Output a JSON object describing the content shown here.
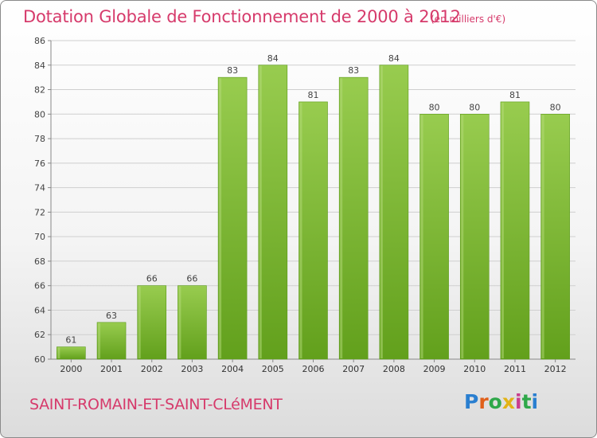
{
  "header": {
    "title": "Dotation Globale de Fonctionnement de 2000 à 2012",
    "subtitle": "(en milliers d'€)"
  },
  "footer": {
    "commune": "SAINT-ROMAIN-ET-SAINT-CLéMENT",
    "logo_letters": [
      "P",
      "r",
      "o",
      "x",
      "i",
      "t",
      "i"
    ],
    "logo_colors": [
      "#2a7fd0",
      "#e0601b",
      "#2fa84a",
      "#e2b316",
      "#c93d8e",
      "#2fa84a",
      "#2a7fd0"
    ]
  },
  "chart_data": {
    "type": "bar",
    "categories": [
      "2000",
      "2001",
      "2002",
      "2003",
      "2004",
      "2005",
      "2006",
      "2007",
      "2008",
      "2009",
      "2010",
      "2011",
      "2012"
    ],
    "values": [
      61,
      63,
      66,
      66,
      83,
      84,
      81,
      83,
      84,
      80,
      80,
      81,
      80
    ],
    "data_labels": [
      "61",
      "63",
      "66",
      "66",
      "83",
      "84",
      "81",
      "83",
      "84",
      "80",
      "80",
      "81",
      "80"
    ],
    "ylim": [
      60,
      86
    ],
    "yticks": [
      "60",
      "62",
      "64",
      "66",
      "68",
      "70",
      "72",
      "74",
      "76",
      "78",
      "80",
      "82",
      "84",
      "86"
    ],
    "grid": true,
    "bar_color": "#7ab330"
  }
}
